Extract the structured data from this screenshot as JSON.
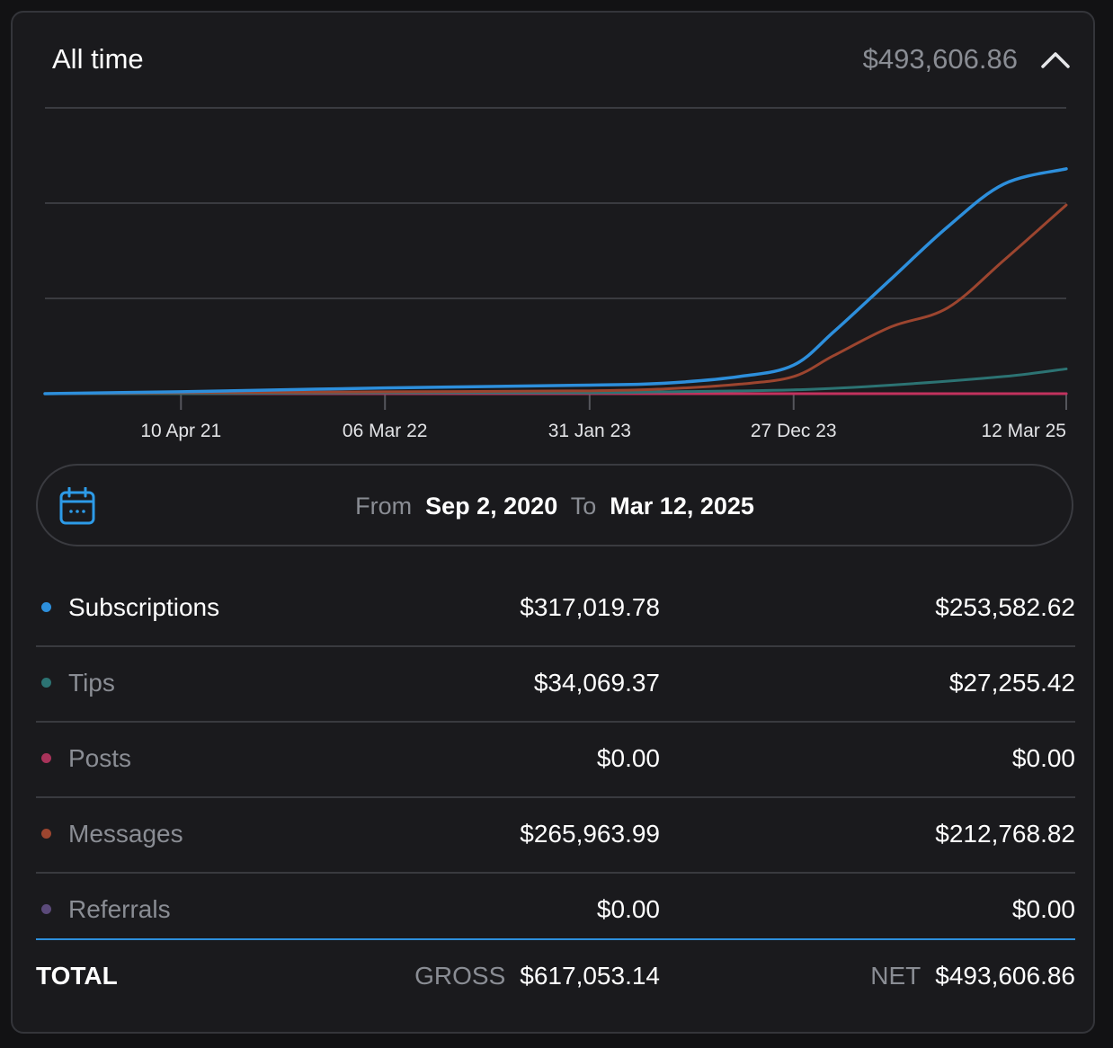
{
  "header": {
    "title": "All time",
    "amount": "$493,606.86"
  },
  "date_range": {
    "from_label": "From",
    "from_date": "Sep 2, 2020",
    "to_label": "To",
    "to_date": "Mar 12, 2025"
  },
  "chart_data": {
    "type": "line",
    "x_tick_labels": [
      "10 Apr 21",
      "06 Mar 22",
      "31 Jan 23",
      "27 Dec 23",
      "12 Mar 25"
    ],
    "x_start": "2020-09-02",
    "x_end": "2025-03-12",
    "x_ticks": [
      "2021-04-10",
      "2022-03-06",
      "2023-01-31",
      "2023-12-27",
      "2025-03-12"
    ],
    "ylim": [
      0,
      300
    ],
    "gridlines": 3,
    "series": [
      {
        "name": "Subscriptions",
        "color": "#2d8fdc",
        "points": [
          [
            "2020-09-02",
            0
          ],
          [
            "2021-04-10",
            2
          ],
          [
            "2022-03-06",
            6
          ],
          [
            "2023-01-31",
            9
          ],
          [
            "2023-06-01",
            11
          ],
          [
            "2023-10-01",
            18
          ],
          [
            "2023-12-27",
            30
          ],
          [
            "2024-03-01",
            65
          ],
          [
            "2024-06-01",
            120
          ],
          [
            "2024-09-01",
            175
          ],
          [
            "2024-12-01",
            220
          ],
          [
            "2025-03-12",
            236
          ]
        ]
      },
      {
        "name": "Tips",
        "color": "#2c7373",
        "points": [
          [
            "2020-09-02",
            0
          ],
          [
            "2021-04-10",
            0
          ],
          [
            "2022-03-06",
            1
          ],
          [
            "2023-01-31",
            1
          ],
          [
            "2023-06-01",
            2
          ],
          [
            "2023-12-27",
            4
          ],
          [
            "2024-06-01",
            9
          ],
          [
            "2024-12-01",
            18
          ],
          [
            "2025-03-12",
            26
          ]
        ]
      },
      {
        "name": "Posts",
        "color": "#c2325e",
        "points": [
          [
            "2020-09-02",
            0
          ],
          [
            "2025-03-12",
            0
          ]
        ]
      },
      {
        "name": "Messages",
        "color": "#9c452f",
        "points": [
          [
            "2020-09-02",
            0
          ],
          [
            "2021-04-10",
            1
          ],
          [
            "2022-03-06",
            2
          ],
          [
            "2023-01-31",
            3
          ],
          [
            "2023-06-01",
            5
          ],
          [
            "2023-10-01",
            10
          ],
          [
            "2023-12-27",
            18
          ],
          [
            "2024-03-01",
            40
          ],
          [
            "2024-06-01",
            70
          ],
          [
            "2024-09-01",
            90
          ],
          [
            "2024-12-01",
            140
          ],
          [
            "2025-03-12",
            198
          ]
        ]
      },
      {
        "name": "Referrals",
        "color": "#6d4e8f",
        "points": [
          [
            "2020-09-02",
            0
          ],
          [
            "2025-03-12",
            0
          ]
        ]
      }
    ]
  },
  "breakdown": [
    {
      "label": "Subscriptions",
      "gross": "$317,019.78",
      "net": "$253,582.62",
      "dot_color": "#2d8fdc",
      "label_color": "#ffffff"
    },
    {
      "label": "Tips",
      "gross": "$34,069.37",
      "net": "$27,255.42",
      "dot_color": "#2c7373",
      "label_color": "#8a8d94"
    },
    {
      "label": "Posts",
      "gross": "$0.00",
      "net": "$0.00",
      "dot_color": "#a8335a",
      "label_color": "#8a8d94"
    },
    {
      "label": "Messages",
      "gross": "$265,963.99",
      "net": "$212,768.82",
      "dot_color": "#9c452f",
      "label_color": "#8a8d94"
    },
    {
      "label": "Referrals",
      "gross": "$0.00",
      "net": "$0.00",
      "dot_color": "#5b4a7a",
      "label_color": "#8a8d94"
    }
  ],
  "total": {
    "label": "TOTAL",
    "gross_label": "GROSS",
    "gross": "$617,053.14",
    "net_label": "NET",
    "net": "$493,606.86"
  }
}
